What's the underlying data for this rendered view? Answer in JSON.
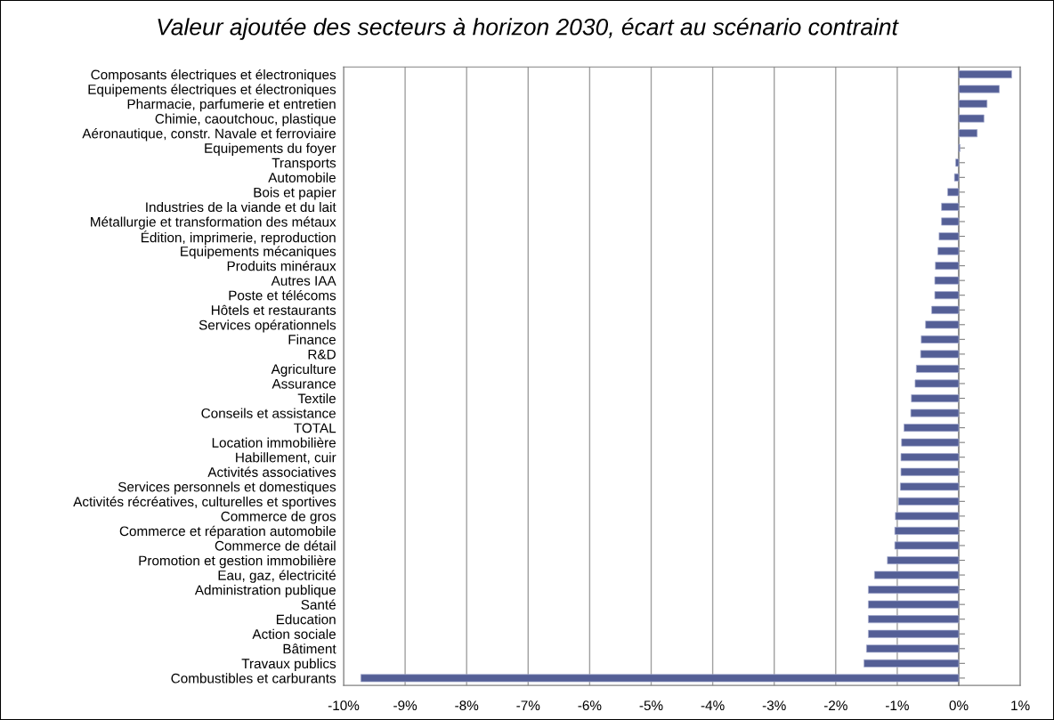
{
  "chart_data": {
    "type": "bar",
    "orientation": "horizontal",
    "title": "Valeur ajoutée des secteurs à horizon 2030, écart au scénario contraint",
    "categories": [
      "Composants électriques et électroniques",
      "Equipements électriques et électroniques",
      "Pharmacie, parfumerie et entretien",
      "Chimie, caoutchouc, plastique",
      "Aéronautique, constr. Navale et ferroviaire",
      "Equipements du foyer",
      "Transports",
      "Automobile",
      "Bois et papier",
      "Industries de la viande et du lait",
      "Métallurgie et transformation des métaux",
      "Édition, imprimerie, reproduction",
      "Equipements mécaniques",
      "Produits minéraux",
      "Autres IAA",
      "Poste et télécoms",
      "Hôtels et restaurants",
      "Services opérationnels",
      "Finance",
      "R&D",
      "Agriculture",
      "Assurance",
      "Textile",
      "Conseils et assistance",
      "TOTAL",
      "Location immobilière",
      "Habillement, cuir",
      "Activités associatives",
      "Services personnels et domestiques",
      "Activités récréatives, culturelles et sportives",
      "Commerce de gros",
      "Commerce et réparation automobile",
      "Commerce de détail",
      "Promotion et gestion immobilière",
      "Eau, gaz, électricité",
      "Administration publique",
      "Santé",
      "Education",
      "Action sociale",
      "Bâtiment",
      "Travaux publics",
      "Combustibles et carburants"
    ],
    "values": [
      0.86,
      0.66,
      0.46,
      0.41,
      0.3,
      0.02,
      -0.05,
      -0.07,
      -0.18,
      -0.28,
      -0.28,
      -0.32,
      -0.34,
      -0.38,
      -0.39,
      -0.39,
      -0.44,
      -0.54,
      -0.61,
      -0.62,
      -0.69,
      -0.71,
      -0.77,
      -0.78,
      -0.89,
      -0.93,
      -0.94,
      -0.94,
      -0.95,
      -0.98,
      -1.03,
      -1.04,
      -1.04,
      -1.16,
      -1.37,
      -1.47,
      -1.47,
      -1.47,
      -1.47,
      -1.5,
      -1.54,
      -9.72
    ],
    "color": "#545f96",
    "xlim": [
      -10,
      1
    ],
    "xticks": [
      {
        "value": -10,
        "label": "-10%"
      },
      {
        "value": -9,
        "label": "-9%"
      },
      {
        "value": -8,
        "label": "-8%"
      },
      {
        "value": -7,
        "label": "-7%"
      },
      {
        "value": -6,
        "label": "-6%"
      },
      {
        "value": -5,
        "label": "-5%"
      },
      {
        "value": -4,
        "label": "-4%"
      },
      {
        "value": -3,
        "label": "-3%"
      },
      {
        "value": -2,
        "label": "-2%"
      },
      {
        "value": -1,
        "label": "-1%"
      },
      {
        "value": 0,
        "label": "0%"
      },
      {
        "value": 1,
        "label": "1%"
      }
    ],
    "grid": "x",
    "legend": false
  }
}
